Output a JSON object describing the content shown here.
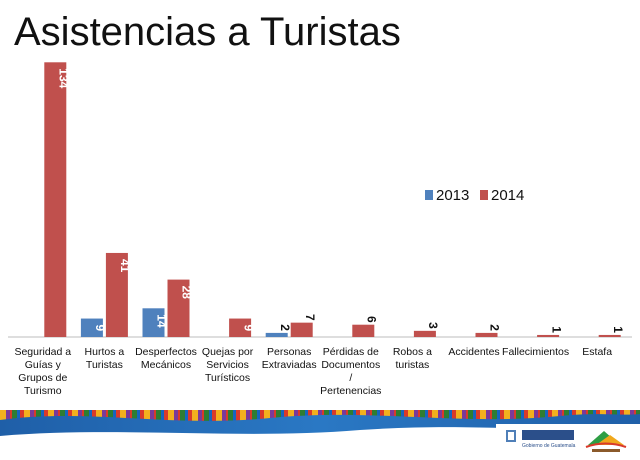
{
  "slide": {
    "title": "Asistencias a Turistas"
  },
  "chart_data": {
    "type": "bar",
    "title": "",
    "xlabel": "",
    "ylabel": "",
    "legend_position": "right",
    "grid": false,
    "categories": [
      "Seguridad a Guías y Grupos de Turismo",
      "Hurtos a Turistas",
      "Desperfectos Mecánicos",
      "Quejas por Servicios Turísticos",
      "Personas Extraviadas",
      "Pérdidas de Documentos / Pertenencias",
      "Robos a turistas",
      "Accidentes",
      "Fallecimientos",
      "Estafa"
    ],
    "series": [
      {
        "name": "2013",
        "color": "#4f81bd",
        "values": [
          null,
          9,
          14,
          null,
          2,
          null,
          null,
          null,
          null,
          null
        ]
      },
      {
        "name": "2014",
        "color": "#c0504d",
        "values": [
          134,
          41,
          28,
          9,
          7,
          6,
          3,
          2,
          1,
          1
        ]
      }
    ],
    "ylim": [
      0,
      140
    ]
  },
  "footer": {
    "logos": [
      {
        "name": "gobierno-guatemala-logo",
        "text": "Gobierno de Guatemala"
      },
      {
        "name": "inguat-logo",
        "text": ""
      }
    ]
  }
}
